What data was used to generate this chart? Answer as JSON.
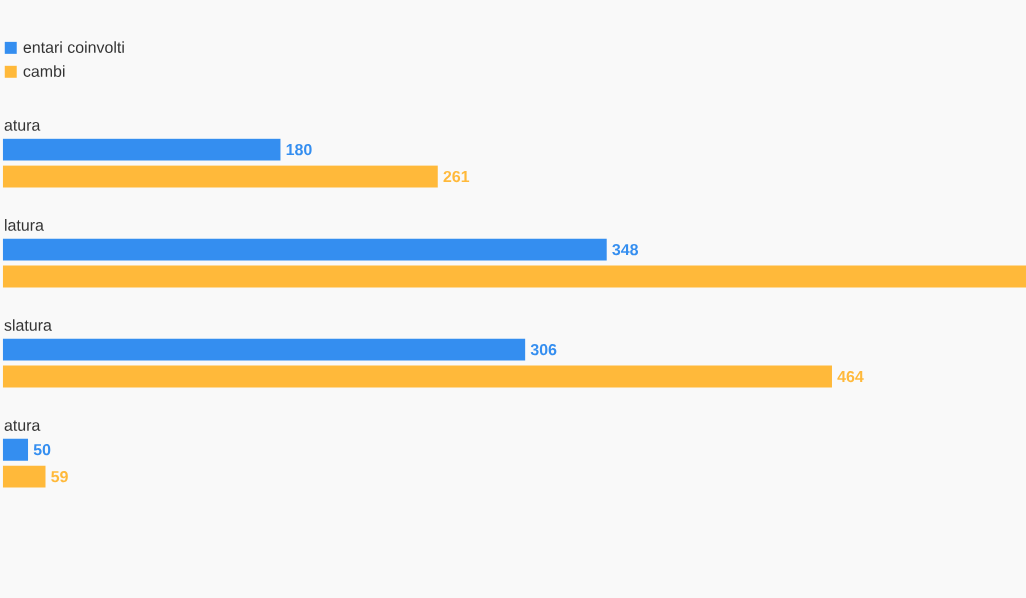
{
  "chart_data": {
    "type": "bar",
    "orientation": "horizontal",
    "categories": [
      "atura",
      "latura",
      "slatura",
      "atura"
    ],
    "series": [
      {
        "name": "entari coinvolti",
        "color": "#348ef0",
        "values": [
          180,
          348,
          306,
          50
        ],
        "value_labels": [
          "180",
          "348",
          "306",
          "50"
        ]
      },
      {
        "name": "cambi",
        "color": "#ffb93a",
        "values": [
          261,
          564,
          464,
          59
        ],
        "value_labels": [
          "261",
          null,
          "464",
          "59"
        ]
      }
    ],
    "xlim": [
      37,
      564
    ],
    "legend": "top left"
  }
}
